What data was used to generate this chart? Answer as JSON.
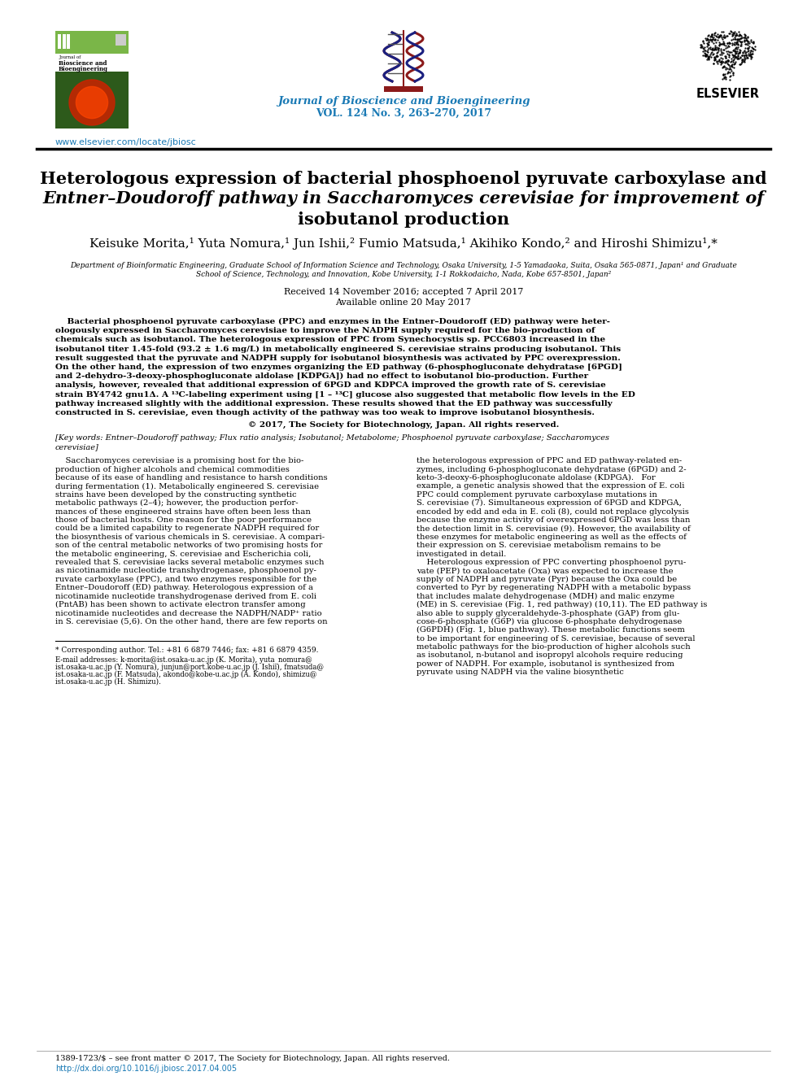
{
  "journal_name": "Journal of Bioscience and Bioengineering",
  "journal_vol": "VOL. 124 No. 3, 263–270, 2017",
  "website": "www.elsevier.com/locate/jbiosc",
  "received": "Received 14 November 2016; accepted 7 April 2017",
  "available": "Available online 20 May 2017",
  "copyright": "© 2017, The Society for Biotechnology, Japan. All rights reserved.",
  "footer_left": "1389-1723/$ – see front matter © 2017, The Society for Biotechnology, Japan. All rights reserved.",
  "footer_doi": "http://dx.doi.org/10.1016/j.jbiosc.2017.04.005",
  "teal_color": "#1a7ab5",
  "header_blue": "#1a7ab5",
  "dna_red": "#8B1A1A",
  "dna_blue": "#1a2080"
}
